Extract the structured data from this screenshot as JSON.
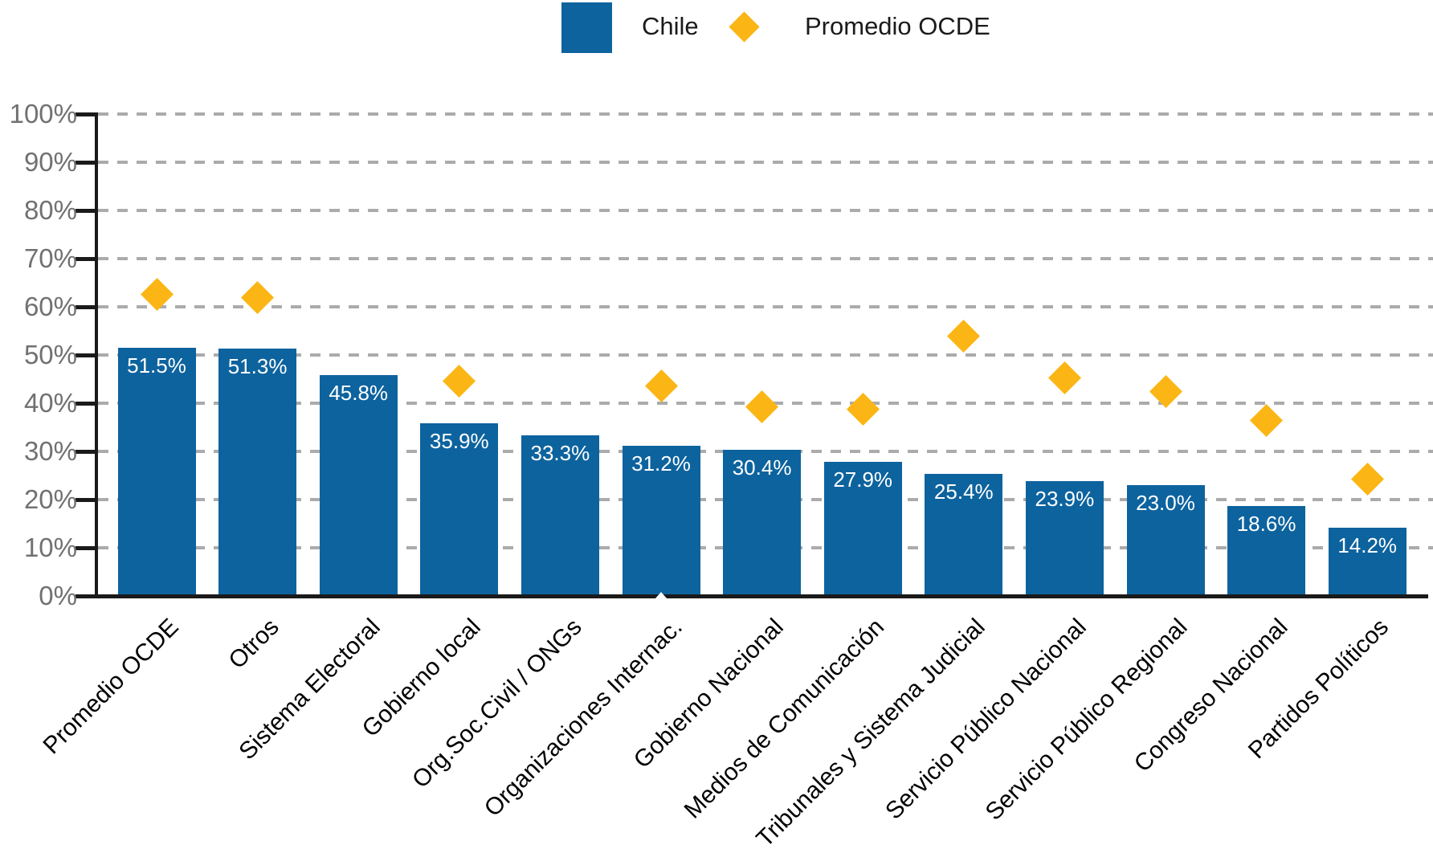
{
  "legend": {
    "chile_label": "Chile",
    "ocde_label": "Promedio OCDE"
  },
  "colors": {
    "bar_blue": "#0d639e",
    "diamond_yellow": "#fbb615",
    "gridline_gray": "#ababab",
    "axis_black": "#1a1a1a",
    "y_label_gray": "#717171",
    "value_label_white": "#ffffff",
    "category_label_black": "#000000"
  },
  "y_axis": {
    "tick_labels": [
      "0%",
      "10%",
      "20%",
      "30%",
      "40%",
      "50%",
      "60%",
      "70%",
      "80%",
      "90%",
      "100%"
    ],
    "min": 0,
    "max": 100,
    "step": 10
  },
  "chart_data": {
    "type": "bar",
    "title": "",
    "xlabel": "",
    "ylabel": "",
    "ylim": [
      0,
      100
    ],
    "grid": "horizontal-dashed",
    "legend_position": "top-center",
    "categories": [
      "Promedio OCDE",
      "Otros",
      "Sistema Electoral",
      "Gobierno local",
      "Org.Soc.Civil / ONGs",
      "Organizaciones Internac.",
      "Gobierno Nacional",
      "Medios de Comunicación",
      "Tribunales y Sistema Judicial",
      "Servicio Público Nacional",
      "Servicio Público Regional",
      "Congreso Nacional",
      "Partidos Políticos"
    ],
    "series": [
      {
        "name": "Chile",
        "type": "bar",
        "values": [
          51.5,
          51.3,
          45.8,
          35.9,
          33.3,
          31.2,
          30.4,
          27.9,
          25.4,
          23.9,
          23.0,
          18.6,
          14.2
        ],
        "value_labels": [
          "51.5%",
          "51.3%",
          "45.8%",
          "35.9%",
          "33.3%",
          "31.2%",
          "30.4%",
          "27.9%",
          "25.4%",
          "23.9%",
          "23.0%",
          "18.6%",
          "14.2%"
        ]
      },
      {
        "name": "Promedio OCDE",
        "type": "scatter",
        "marker": "diamond",
        "values": [
          62.6,
          62.0,
          null,
          44.6,
          null,
          43.6,
          39.3,
          38.8,
          54.0,
          45.2,
          42.5,
          36.4,
          24.3
        ]
      }
    ]
  }
}
